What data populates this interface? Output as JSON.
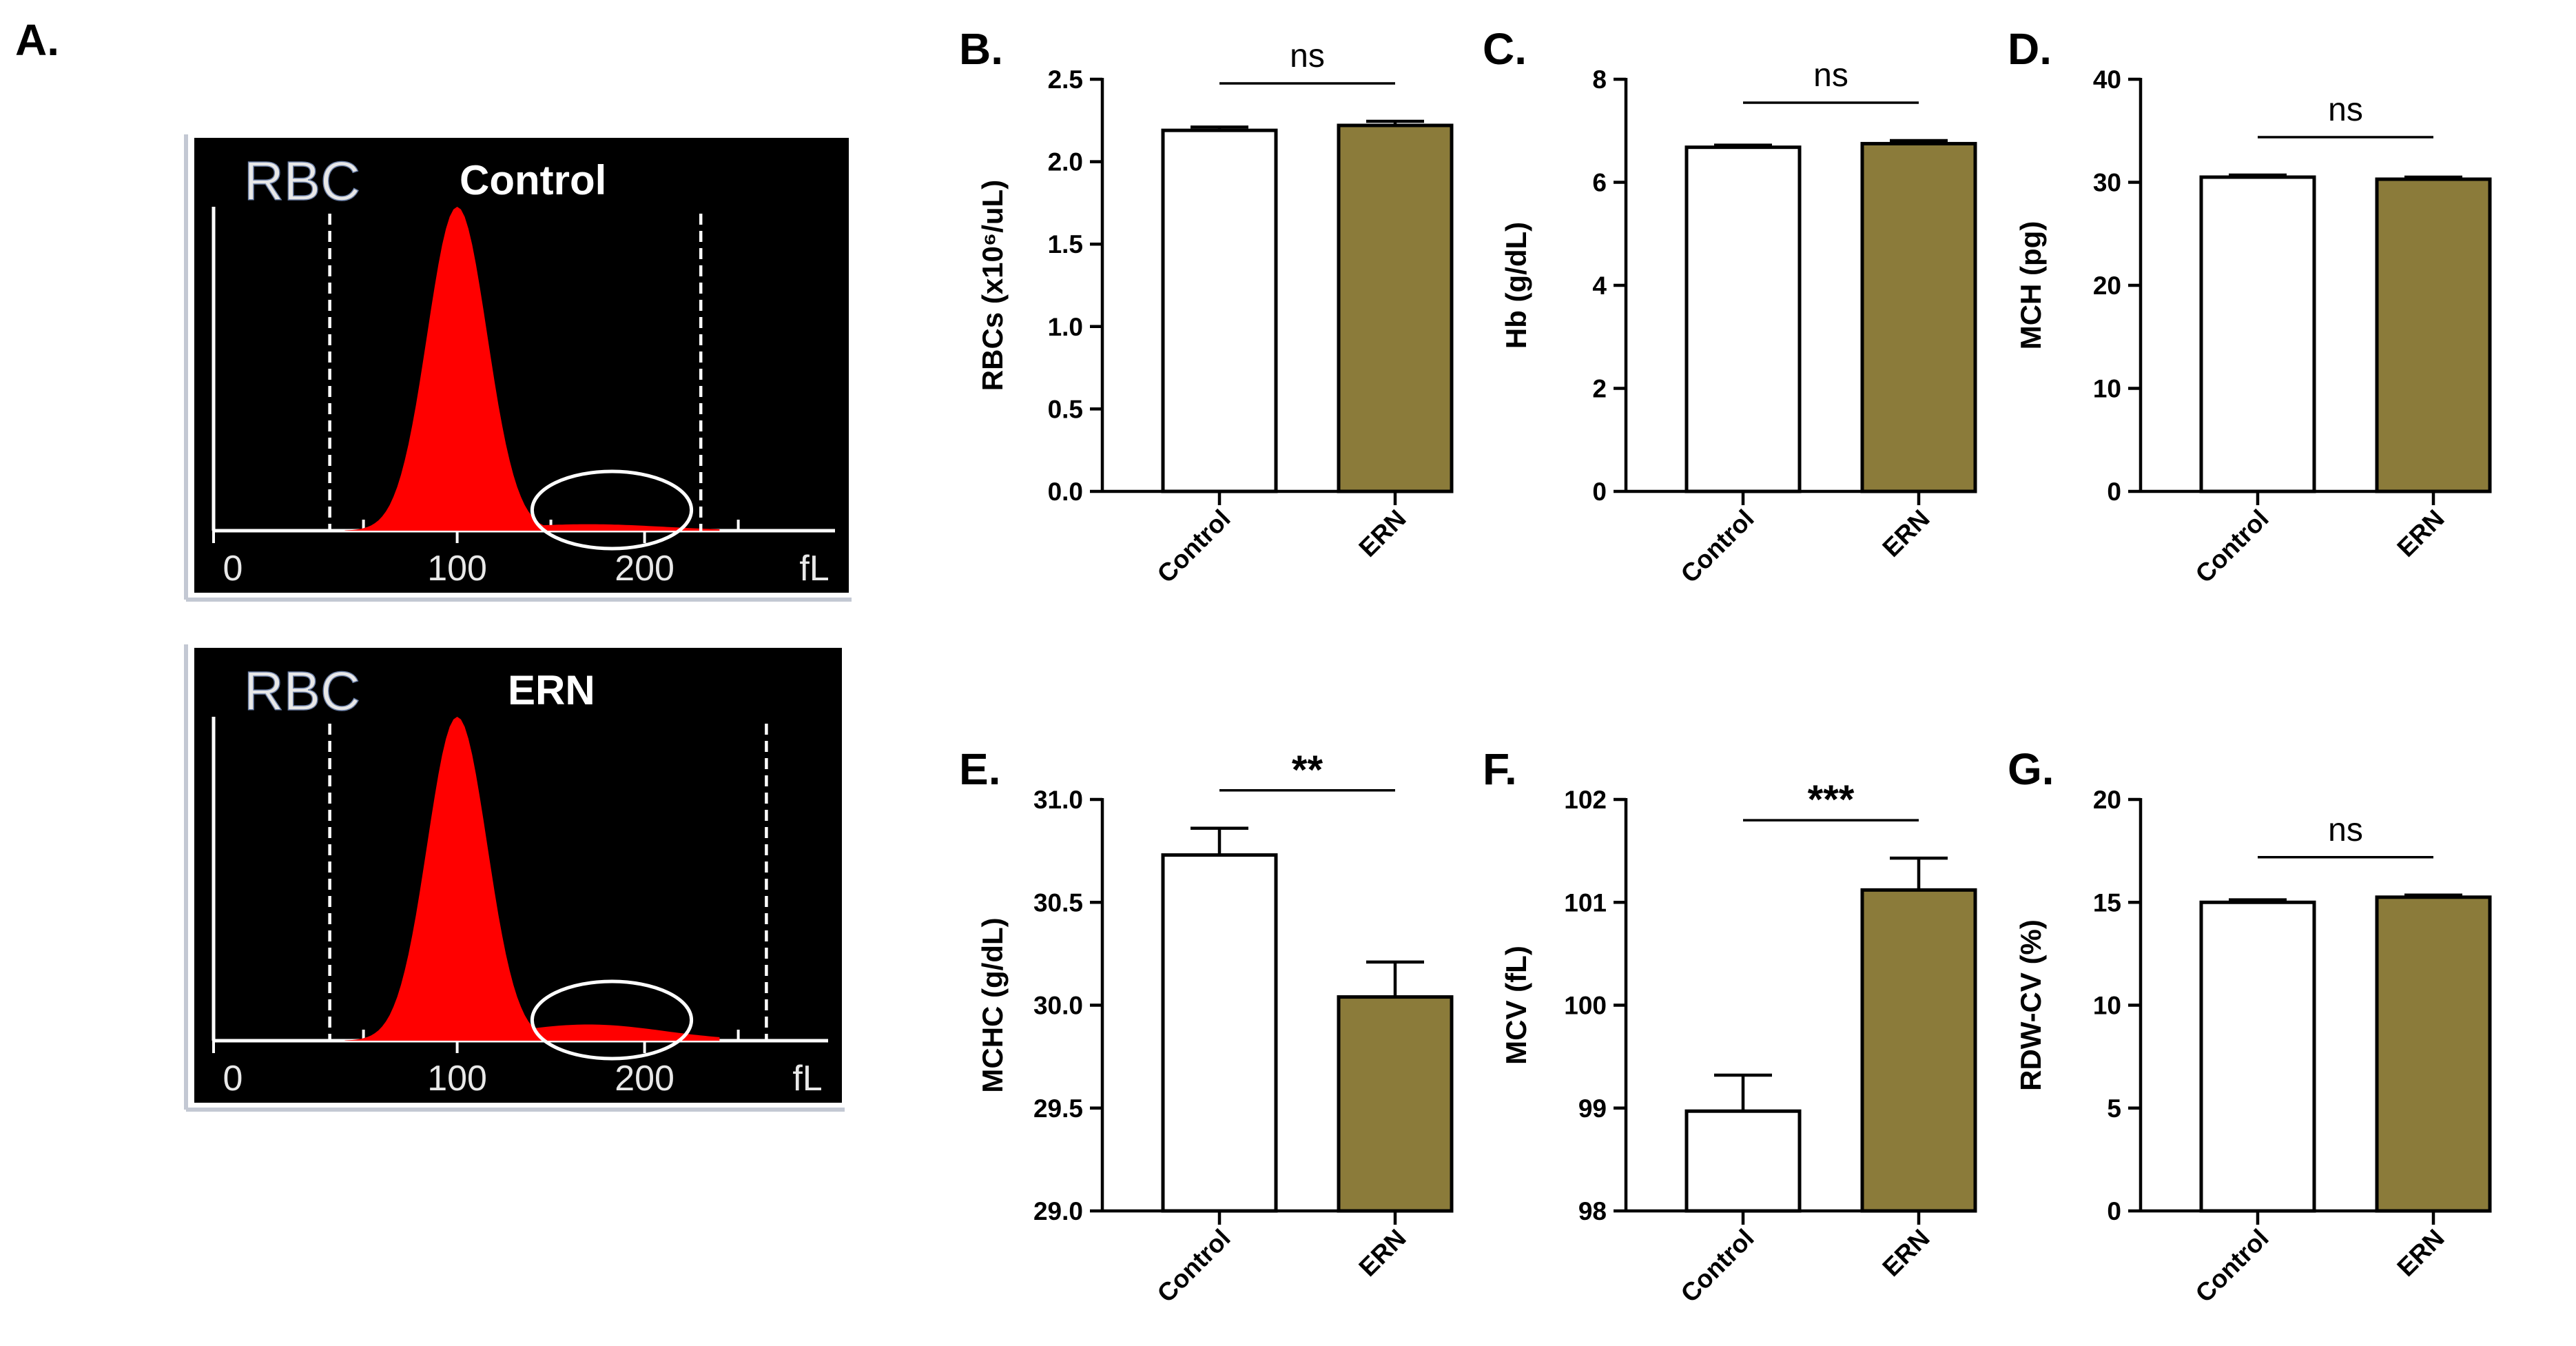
{
  "panel_a": {
    "label": "A.",
    "histograms": [
      {
        "id": "control",
        "channel": "RBC",
        "group": "Control",
        "peak": 100,
        "spread": 16,
        "tail": 0.02,
        "x_ticks": [
          "0",
          "100",
          "200"
        ],
        "unit": "fL",
        "gate_left": 32,
        "gate_right": 230,
        "highlight": [
          140,
          225
        ]
      },
      {
        "id": "ern",
        "channel": "RBC",
        "group": "ERN",
        "peak": 100,
        "spread": 16,
        "tail": 0.05,
        "x_ticks": [
          "0",
          "100",
          "200"
        ],
        "unit": "fL",
        "gate_left": 32,
        "gate_right": 265,
        "highlight": [
          140,
          225
        ]
      }
    ]
  },
  "colors": {
    "control_fill": "#ffffff",
    "ern_fill": "#8b7b3a",
    "bar_stroke": "#000000",
    "hist_bg": "#000000",
    "hist_fill": "#ff0000"
  },
  "chart_data": [
    {
      "id": "B",
      "label": "B.",
      "type": "bar",
      "ylabel": "RBCs (x10⁶/uL)",
      "ylim": [
        0,
        2.5
      ],
      "yticks": [
        "0.0",
        "0.5",
        "1.0",
        "1.5",
        "2.0",
        "2.5"
      ],
      "categories": [
        "Control",
        "ERN"
      ],
      "values": [
        2.19,
        2.22
      ],
      "errors": [
        0.02,
        0.025
      ],
      "significance": "ns"
    },
    {
      "id": "C",
      "label": "C.",
      "type": "bar",
      "ylabel": "Hb (g/dL)",
      "ylim": [
        0,
        8
      ],
      "yticks": [
        "0",
        "2",
        "4",
        "6",
        "8"
      ],
      "categories": [
        "Control",
        "ERN"
      ],
      "values": [
        6.68,
        6.75
      ],
      "errors": [
        0.04,
        0.06
      ],
      "significance": "ns"
    },
    {
      "id": "D",
      "label": "D.",
      "type": "bar",
      "ylabel": "MCH (pg)",
      "ylim": [
        0,
        40
      ],
      "yticks": [
        "0",
        "10",
        "20",
        "30",
        "40"
      ],
      "categories": [
        "Control",
        "ERN"
      ],
      "values": [
        30.5,
        30.3
      ],
      "errors": [
        0.2,
        0.2
      ],
      "significance": "ns"
    },
    {
      "id": "E",
      "label": "E.",
      "type": "bar",
      "ylabel": "MCHC (g/dL)",
      "ylim": [
        29.0,
        31.0
      ],
      "yticks": [
        "29.0",
        "29.5",
        "30.0",
        "30.5",
        "31.0"
      ],
      "categories": [
        "Control",
        "ERN"
      ],
      "values": [
        30.73,
        30.04
      ],
      "errors": [
        0.13,
        0.17
      ],
      "significance": "**"
    },
    {
      "id": "F",
      "label": "F.",
      "type": "bar",
      "ylabel": "MCV (fL)",
      "ylim": [
        98,
        102
      ],
      "yticks": [
        "98",
        "99",
        "100",
        "101",
        "102"
      ],
      "categories": [
        "Control",
        "ERN"
      ],
      "values": [
        98.97,
        101.12
      ],
      "errors": [
        0.35,
        0.31
      ],
      "significance": "***"
    },
    {
      "id": "G",
      "label": "G.",
      "type": "bar",
      "ylabel": "RDW-CV (%)",
      "ylim": [
        0,
        20
      ],
      "yticks": [
        "0",
        "5",
        "10",
        "15",
        "20"
      ],
      "categories": [
        "Control",
        "ERN"
      ],
      "values": [
        15.0,
        15.25
      ],
      "errors": [
        0.12,
        0.1
      ],
      "significance": "ns"
    }
  ]
}
